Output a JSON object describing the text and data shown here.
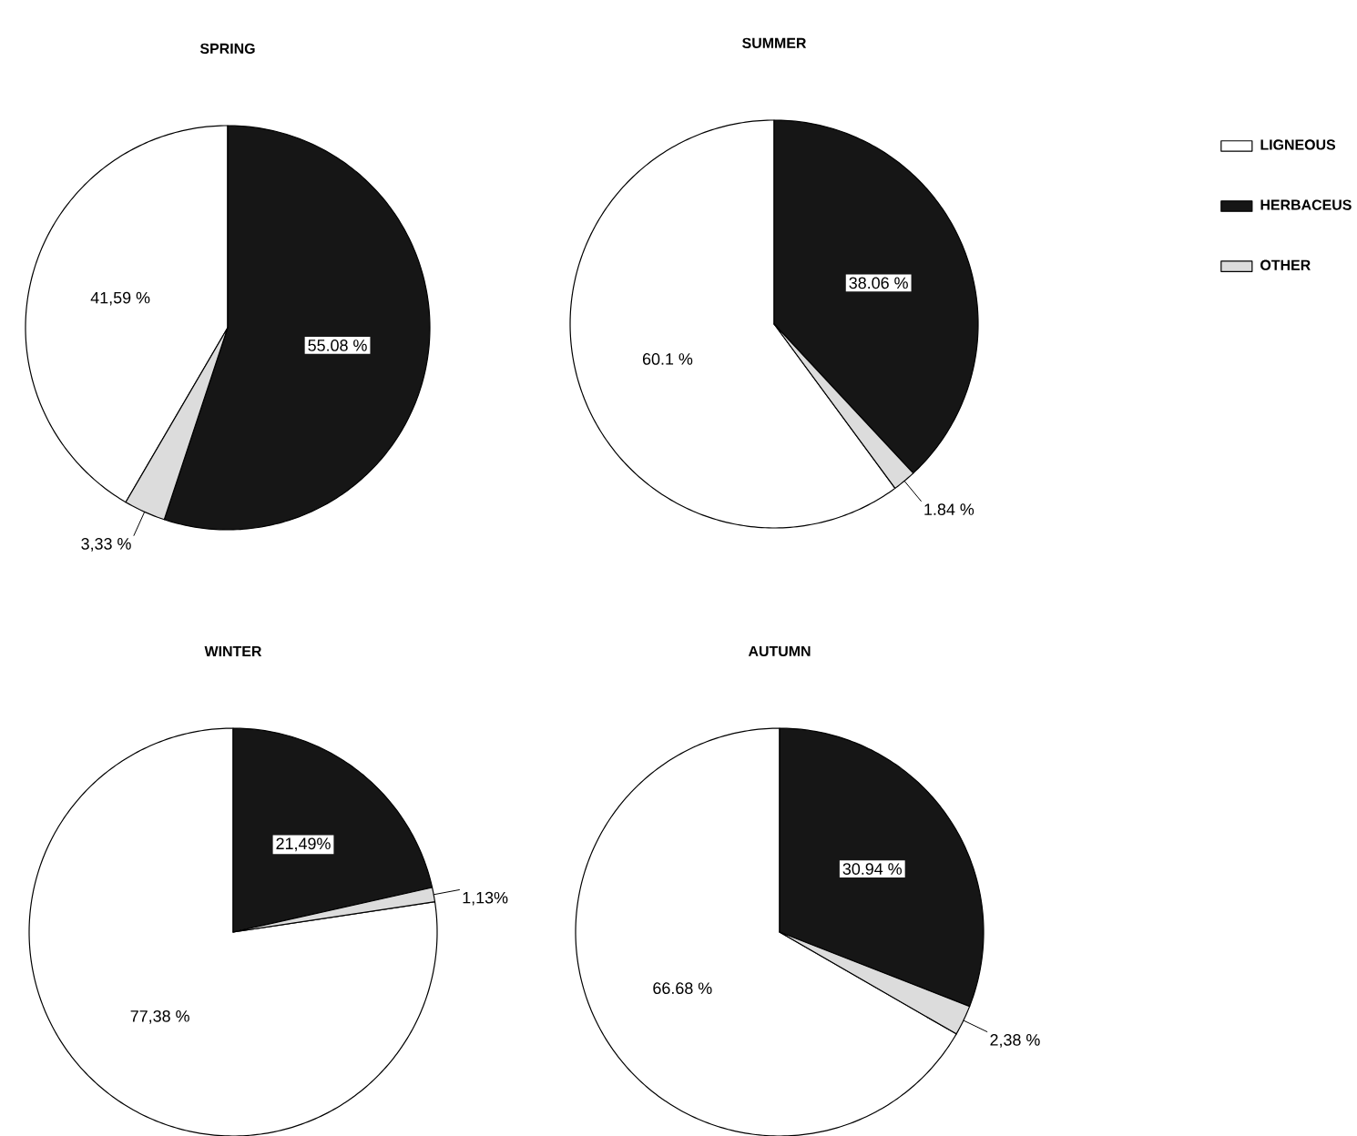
{
  "chart_data": [
    {
      "type": "pie",
      "title": "SPRING",
      "categories": [
        null,
        null,
        null
      ],
      "values": [
        41.59,
        55.08,
        3.33
      ],
      "colors": [
        "#ffffff",
        "#161616",
        "#dcdcdc"
      ],
      "value_labels": [
        "41,59 %",
        "55.08 %",
        "3,33 %"
      ]
    },
    {
      "type": "pie",
      "title": "SUMMER",
      "categories": [
        "LIGNEOUS",
        "HERBACEUS",
        "OTHER"
      ],
      "values": [
        60.1,
        38.06,
        1.84
      ],
      "colors": [
        "#ffffff",
        "#161616",
        "#dcdcdc"
      ],
      "value_labels": [
        "60.1 %",
        "38.06 %",
        "1.84 %"
      ],
      "legend": "right"
    },
    {
      "type": "pie",
      "title": "WINTER",
      "categories": [
        null,
        null,
        null
      ],
      "values": [
        77.38,
        21.49,
        1.13
      ],
      "colors": [
        "#ffffff",
        "#161616",
        "#dcdcdc"
      ],
      "value_labels": [
        "77,38 %",
        "21,49%",
        "1,13%"
      ]
    },
    {
      "type": "pie",
      "title": "AUTUMN",
      "categories": [
        null,
        null,
        null
      ],
      "values": [
        66.68,
        30.94,
        2.38
      ],
      "colors": [
        "#ffffff",
        "#161616",
        "#dcdcdc"
      ],
      "value_labels": [
        "66.68 %",
        "30.94 %",
        "2,38 %"
      ]
    }
  ]
}
